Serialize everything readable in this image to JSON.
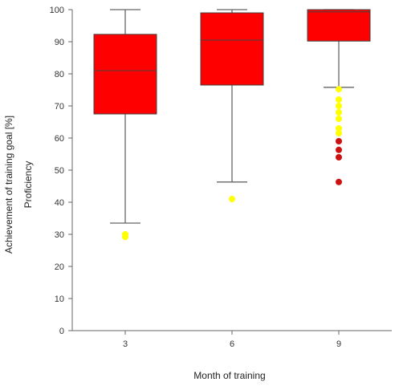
{
  "chart_data": {
    "type": "box",
    "xlabel": "Month of training",
    "ylabel": "Achievement of training goal [%]",
    "ylabel2": "Proficiency",
    "categories": [
      "3",
      "6",
      "9"
    ],
    "ylim": [
      0,
      100
    ],
    "yticks": [
      0,
      10,
      20,
      30,
      40,
      50,
      60,
      70,
      80,
      90,
      100
    ],
    "grid": false,
    "box_color": "#ff0000",
    "boxes": [
      {
        "category": "3",
        "whisker_low": 33.5,
        "q1": 67.5,
        "median": 81,
        "q3": 92.3,
        "whisker_high": 100
      },
      {
        "category": "6",
        "whisker_low": 46.3,
        "q1": 76.5,
        "median": 90.5,
        "q3": 99,
        "whisker_high": 100
      },
      {
        "category": "9",
        "whisker_low": 75.8,
        "q1": 90.2,
        "median": 99.3,
        "q3": 100,
        "whisker_high": 100
      }
    ],
    "outlier_colors": {
      "mild": "#ffff00",
      "extreme": "#cc1111"
    },
    "outliers": [
      {
        "category": "3",
        "value": 30.0,
        "kind": "mild"
      },
      {
        "category": "3",
        "value": 29.2,
        "kind": "mild"
      },
      {
        "category": "6",
        "value": 41.0,
        "kind": "mild"
      },
      {
        "category": "9",
        "value": 75.2,
        "kind": "mild"
      },
      {
        "category": "9",
        "value": 72.0,
        "kind": "mild"
      },
      {
        "category": "9",
        "value": 70.0,
        "kind": "mild"
      },
      {
        "category": "9",
        "value": 68.0,
        "kind": "mild"
      },
      {
        "category": "9",
        "value": 66.0,
        "kind": "mild"
      },
      {
        "category": "9",
        "value": 63.0,
        "kind": "mild"
      },
      {
        "category": "9",
        "value": 61.5,
        "kind": "mild"
      },
      {
        "category": "9",
        "value": 59.0,
        "kind": "extreme"
      },
      {
        "category": "9",
        "value": 56.3,
        "kind": "extreme"
      },
      {
        "category": "9",
        "value": 54.0,
        "kind": "extreme"
      },
      {
        "category": "9",
        "value": 46.3,
        "kind": "extreme"
      }
    ]
  }
}
